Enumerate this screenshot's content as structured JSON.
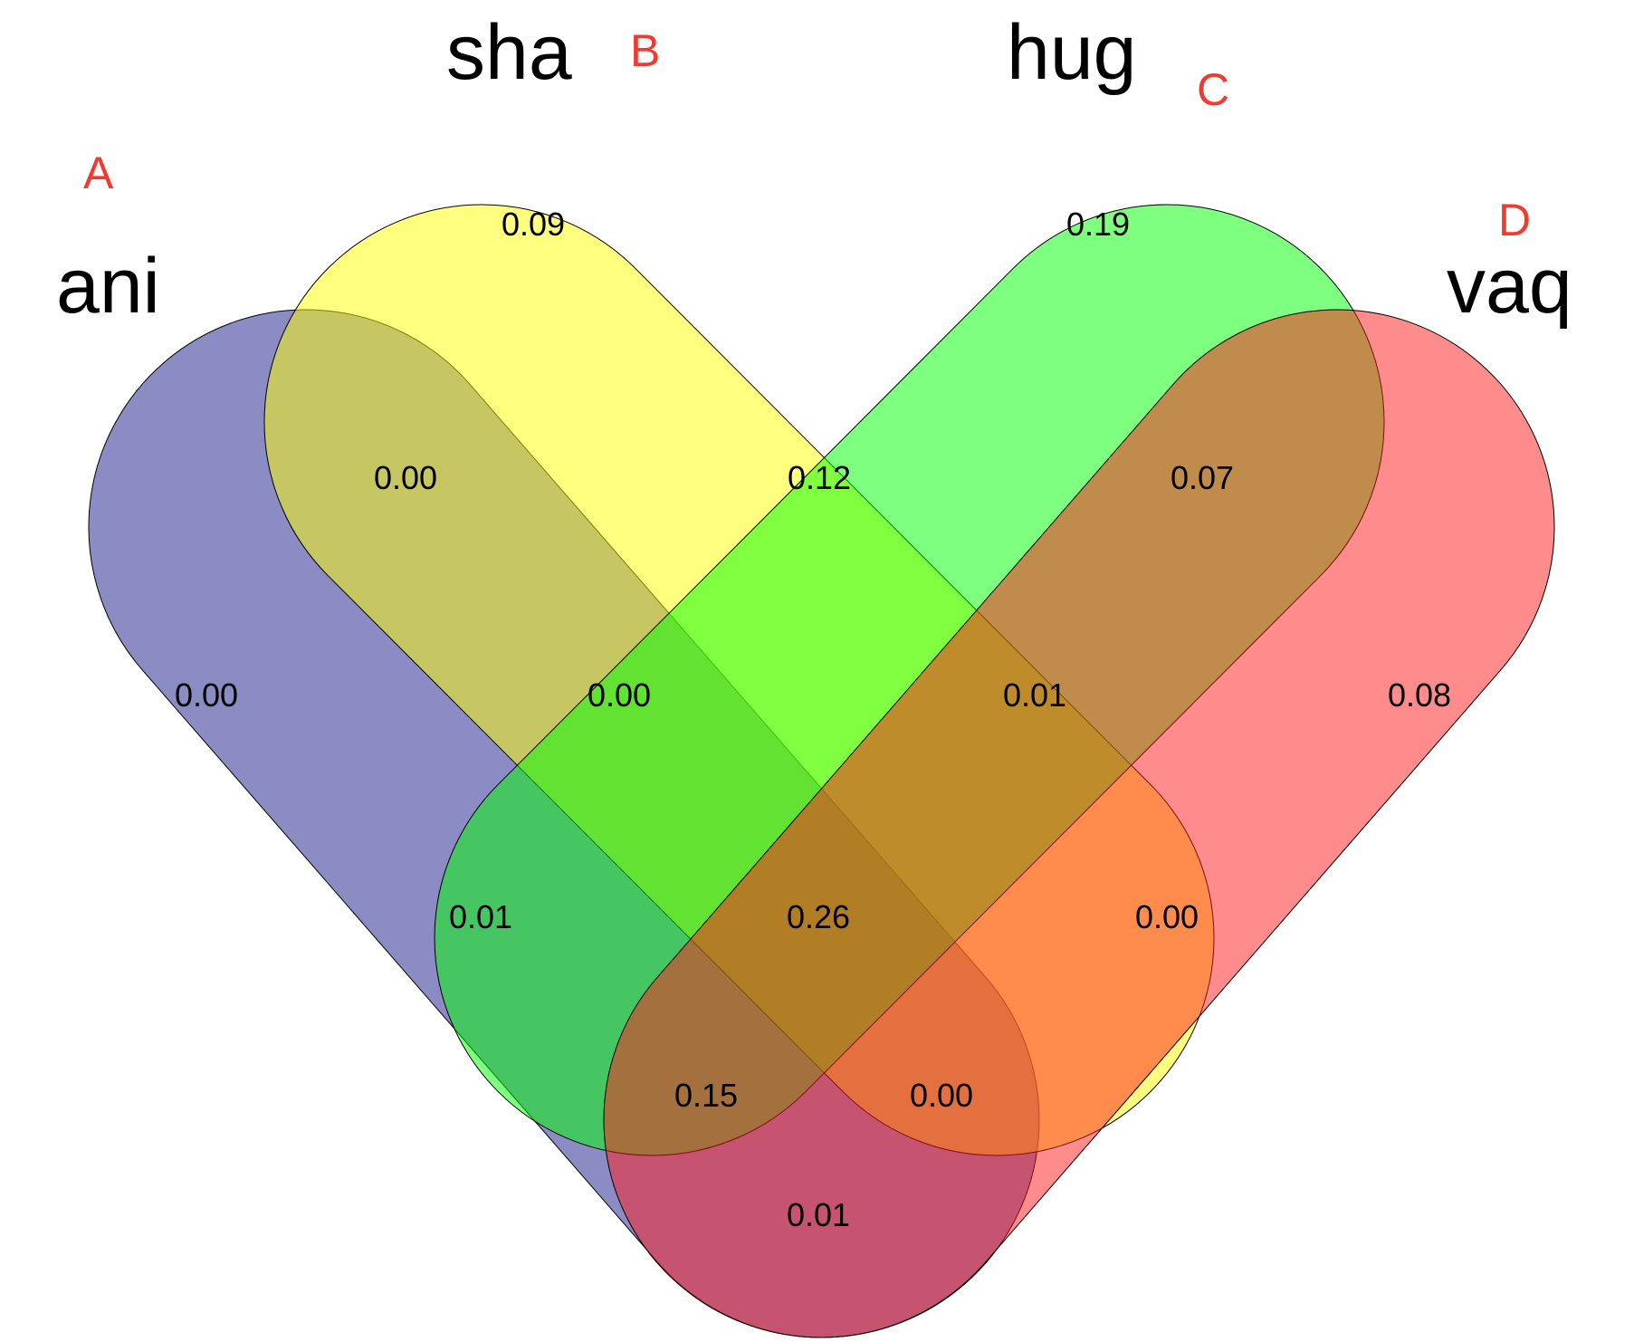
{
  "sets": [
    {
      "id": "A",
      "letter": "A",
      "name": "ani",
      "color": "#1a1a8a"
    },
    {
      "id": "B",
      "letter": "B",
      "name": "sha",
      "color": "#ffff00"
    },
    {
      "id": "C",
      "letter": "C",
      "name": "hug",
      "color": "#00ff00"
    },
    {
      "id": "D",
      "letter": "D",
      "name": "vaq",
      "color": "#ff1a1a"
    }
  ],
  "fill_opacity": 0.5,
  "outline_color": "#000000",
  "letter_color": "#f23a2f",
  "regions": [
    {
      "sets": "B",
      "value": "0.09"
    },
    {
      "sets": "C",
      "value": "0.19"
    },
    {
      "sets": "AB",
      "value": "0.00"
    },
    {
      "sets": "BC",
      "value": "0.12"
    },
    {
      "sets": "CD",
      "value": "0.07"
    },
    {
      "sets": "A",
      "value": "0.00"
    },
    {
      "sets": "ABC",
      "value": "0.00"
    },
    {
      "sets": "BCD",
      "value": "0.01"
    },
    {
      "sets": "D",
      "value": "0.08"
    },
    {
      "sets": "AC",
      "value": "0.01"
    },
    {
      "sets": "ABCD",
      "value": "0.26"
    },
    {
      "sets": "BD",
      "value": "0.00"
    },
    {
      "sets": "ACD",
      "value": "0.15"
    },
    {
      "sets": "ABD",
      "value": "0.00"
    },
    {
      "sets": "AD",
      "value": "0.01"
    }
  ]
}
